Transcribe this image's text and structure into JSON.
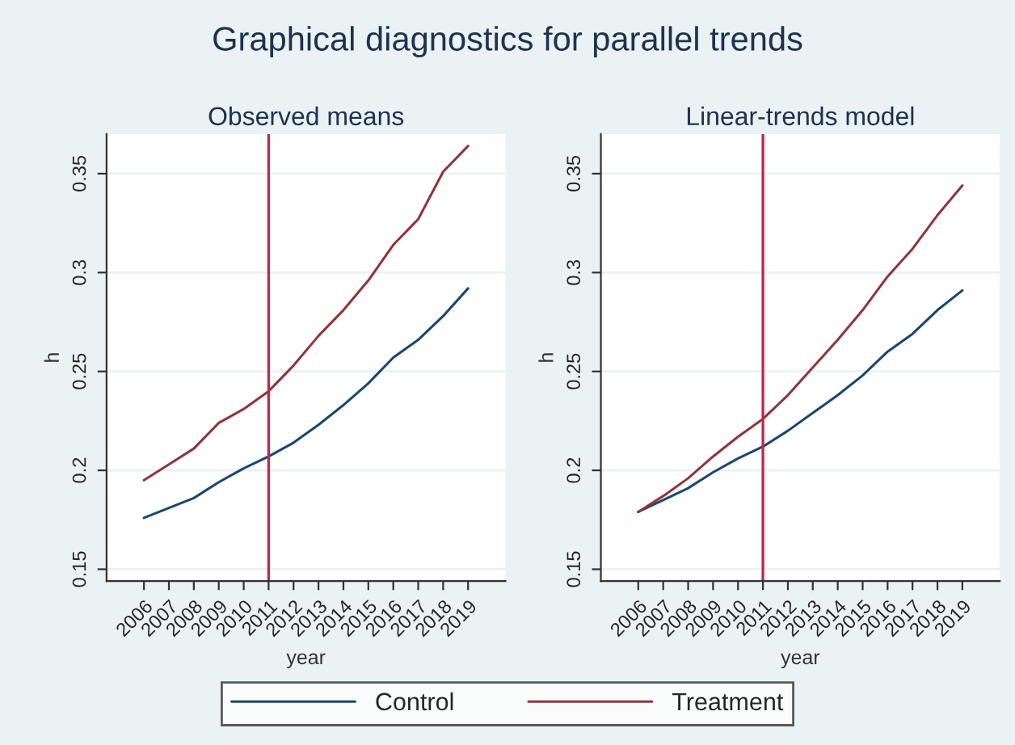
{
  "chart_data": [
    {
      "type": "line",
      "title": "Graphical diagnostics for parallel trends",
      "subtitle": "Observed means",
      "xlabel": "year",
      "ylabel": "h",
      "x": [
        2006,
        2007,
        2008,
        2009,
        2010,
        2011,
        2012,
        2013,
        2014,
        2015,
        2016,
        2017,
        2018,
        2019
      ],
      "series": [
        {
          "name": "Control",
          "color": "#1a476f",
          "values": [
            0.176,
            0.181,
            0.186,
            0.194,
            0.201,
            0.207,
            0.214,
            0.223,
            0.233,
            0.244,
            0.257,
            0.266,
            0.278,
            0.292
          ]
        },
        {
          "name": "Treatment",
          "color": "#90353b",
          "values": [
            0.195,
            0.203,
            0.211,
            0.224,
            0.231,
            0.24,
            0.253,
            0.268,
            0.281,
            0.296,
            0.314,
            0.327,
            0.351,
            0.364
          ]
        }
      ],
      "xlim": [
        2004.5,
        2020.5
      ],
      "xticks": [
        2006,
        2007,
        2008,
        2009,
        2010,
        2011,
        2012,
        2013,
        2014,
        2015,
        2016,
        2017,
        2018,
        2019
      ],
      "ylim": [
        0.144,
        0.37
      ],
      "yticks": [
        0.15,
        0.2,
        0.25,
        0.3,
        0.35
      ],
      "ref_lines": [
        {
          "axis": "x",
          "value": 2011,
          "color": "#c0284e"
        }
      ],
      "grid": "y",
      "legend": "bottom",
      "marker": "none",
      "line_style": "solid"
    },
    {
      "type": "line",
      "subtitle": "Linear-trends model",
      "xlabel": "year",
      "ylabel": "h",
      "x": [
        2006,
        2007,
        2008,
        2009,
        2010,
        2011,
        2012,
        2013,
        2014,
        2015,
        2016,
        2017,
        2018,
        2019
      ],
      "series": [
        {
          "color": "#1a476f",
          "values": [
            0.179,
            0.185,
            0.191,
            0.199,
            0.206,
            0.212,
            0.22,
            0.229,
            0.238,
            0.248,
            0.26,
            0.269,
            0.281,
            0.291
          ]
        },
        {
          "color": "#90353b",
          "values": [
            0.179,
            0.187,
            0.196,
            0.207,
            0.217,
            0.226,
            0.238,
            0.252,
            0.266,
            0.281,
            0.298,
            0.312,
            0.329,
            0.344
          ]
        }
      ],
      "xlim": [
        2004.5,
        2020.5
      ],
      "xticks": [
        2006,
        2007,
        2008,
        2009,
        2010,
        2011,
        2012,
        2013,
        2014,
        2015,
        2016,
        2017,
        2018,
        2019
      ],
      "ylim": [
        0.144,
        0.37
      ],
      "yticks": [
        0.15,
        0.2,
        0.25,
        0.3,
        0.35
      ],
      "ref_lines": [
        {
          "axis": "x",
          "value": 2011,
          "color": "#c0284e"
        }
      ],
      "grid": "y",
      "marker": "none",
      "line_style": "solid"
    }
  ]
}
